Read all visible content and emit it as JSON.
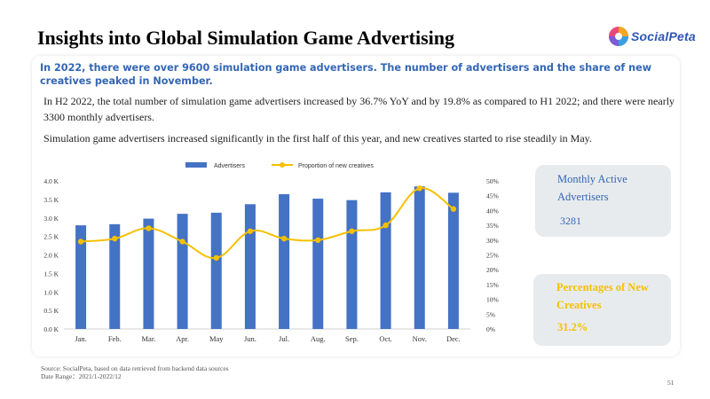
{
  "page": {
    "title": "Insights into Global Simulation Game Advertising",
    "logo_text": "SocialPeta",
    "headline": "In 2022, there were over 9600 simulation game advertisers. The number of advertisers and the share of new creatives peaked in November.",
    "paragraph1": "In H2 2022, the total number of simulation game advertisers increased by 36.7% YoY and by 19.8% as compared to H1 2022; and there were nearly 3300 monthly advertisers.",
    "paragraph2": "Simulation game advertisers increased significantly in the first half of this year, and new creatives started to rise steadily in May.",
    "source_line1": "Source: SocialPeta, based on data retrieved from backend data sources",
    "source_line2": "Date Range：2021/1-2022/12",
    "page_number": "51"
  },
  "cards": {
    "monthly_label": "Monthly Active Advertisers",
    "monthly_value": "3281",
    "creatives_label": "Percentages of New Creatives",
    "creatives_value": "31.2%"
  },
  "colors": {
    "bar": "#4472c4",
    "line": "#f5c000",
    "headline": "#3366b5",
    "card_bg": "#e8ebee"
  },
  "chart_data": {
    "type": "bar",
    "categories": [
      "Jan.",
      "Feb.",
      "Mar.",
      "Apr.",
      "May",
      "Jun.",
      "Jul.",
      "Aug.",
      "Sep.",
      "Oct.",
      "Nov.",
      "Dec."
    ],
    "series": [
      {
        "name": "Advertisers",
        "type": "bar",
        "axis": "left",
        "values": [
          2800,
          2830,
          2980,
          3110,
          3140,
          3370,
          3640,
          3520,
          3480,
          3690,
          3850,
          3680
        ]
      },
      {
        "name": "Proportion of new creatives",
        "type": "line",
        "axis": "right",
        "values": [
          29.5,
          30.5,
          34.0,
          29.5,
          24.0,
          33.0,
          30.5,
          30.0,
          33.0,
          35.0,
          47.5,
          40.5
        ]
      }
    ],
    "left_axis": {
      "ylim": [
        0,
        4000
      ],
      "ticks": [
        "0.0 K",
        "0.5 K",
        "1.0 K",
        "1.5 K",
        "2.0 K",
        "2.5 K",
        "3.0 K",
        "3.5 K",
        "4.0 K"
      ]
    },
    "right_axis": {
      "ylim": [
        0,
        50
      ],
      "ticks": [
        "0%",
        "5%",
        "10%",
        "15%",
        "20%",
        "25%",
        "30%",
        "35%",
        "40%",
        "45%",
        "50%"
      ]
    },
    "legend": "top-center",
    "grid": false
  }
}
